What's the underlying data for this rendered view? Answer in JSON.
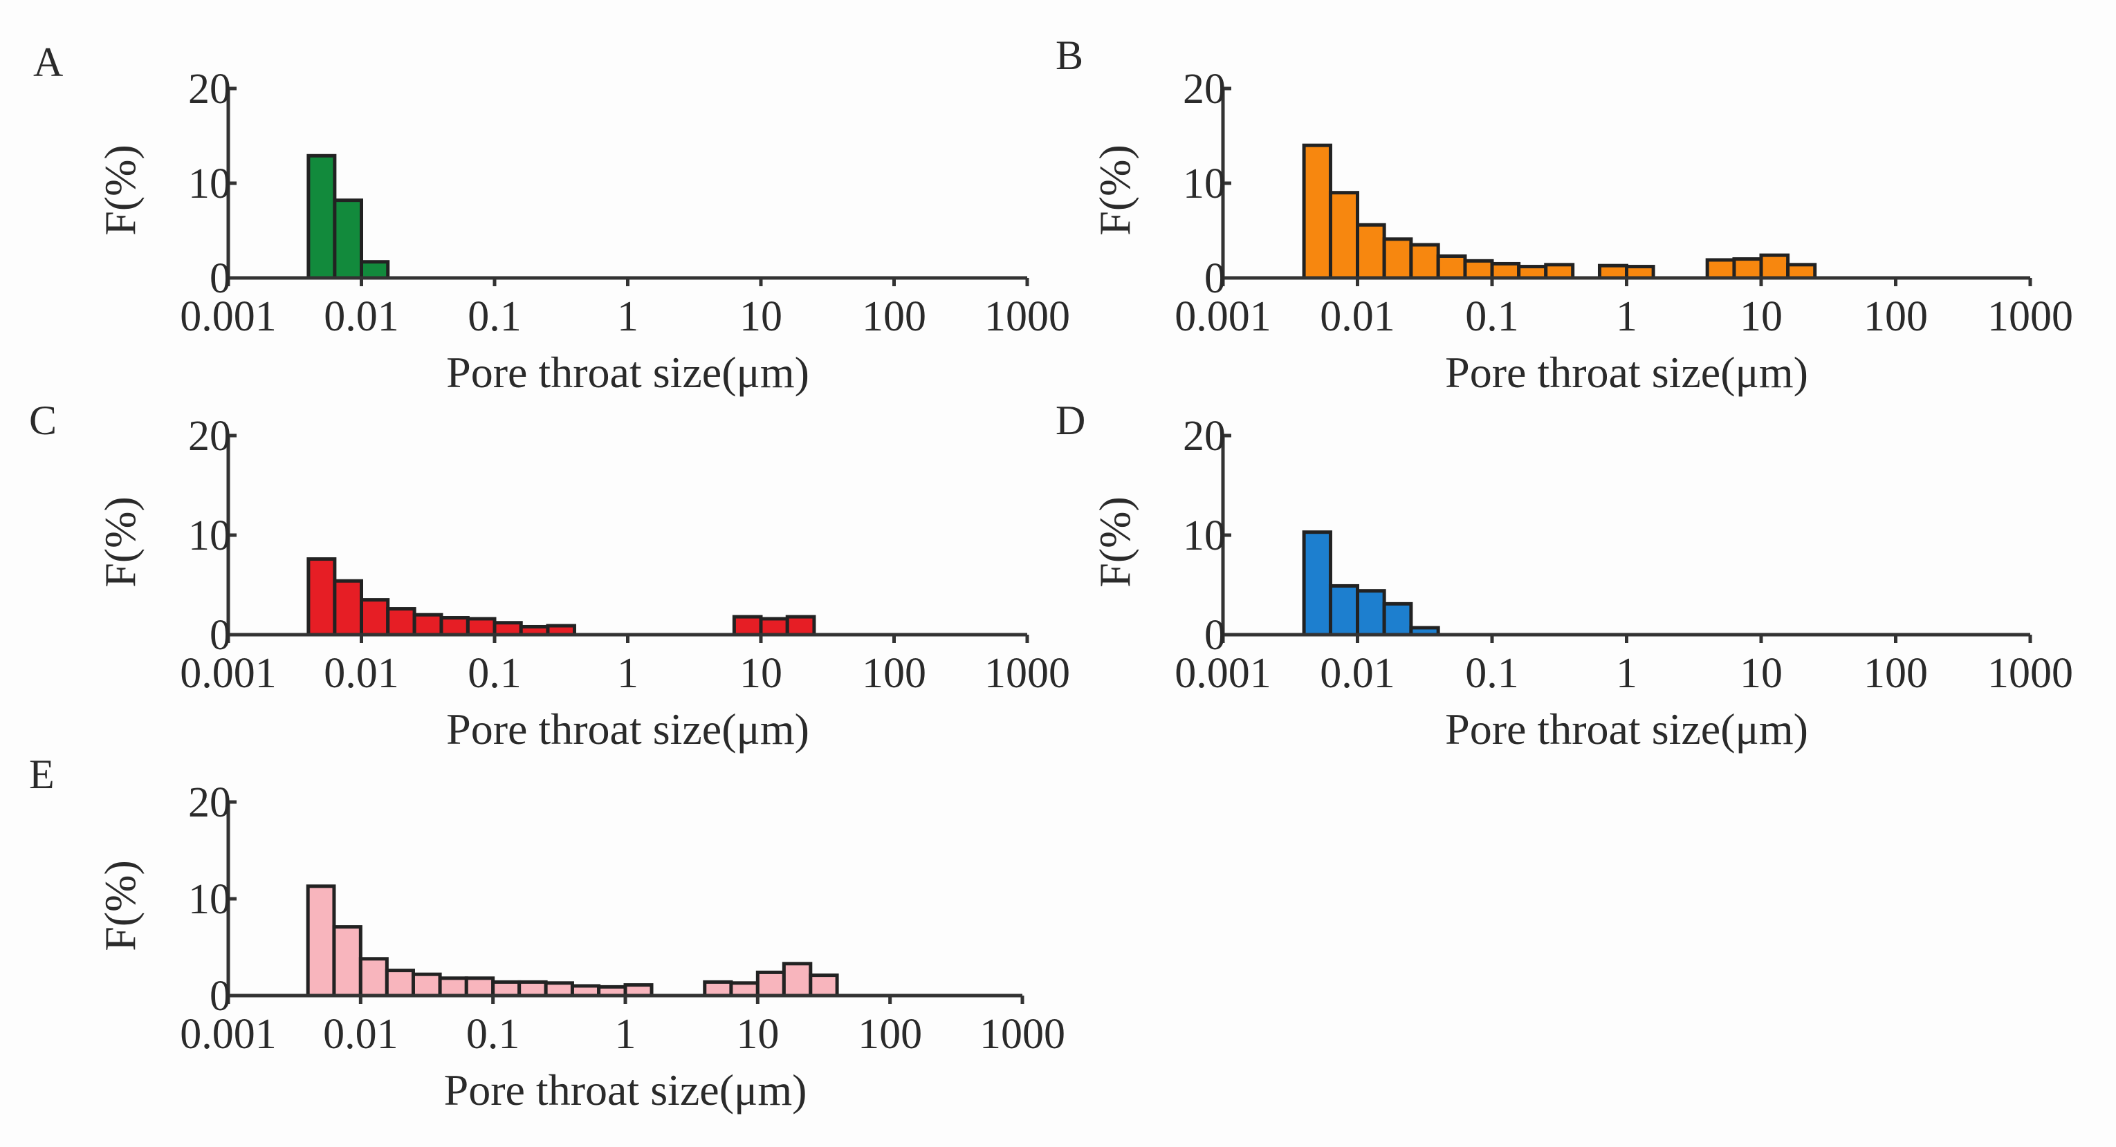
{
  "chart_data": [
    {
      "type": "bar",
      "panel": "A",
      "color": "#128a3c",
      "xscale": "log",
      "xlim": [
        0.001,
        1000
      ],
      "ylim": [
        0,
        20
      ],
      "xlabel": "Pore throat size(μm)",
      "ylabel": "F(%)",
      "xtick_labels": [
        "0.001",
        "0.01",
        "0.1",
        "1",
        "10",
        "100",
        "1000"
      ],
      "ytick_labels": [
        "0",
        "10",
        "20"
      ],
      "bin_edges": [
        0.004,
        0.0063,
        0.01,
        0.0158
      ],
      "values": [
        12.9,
        8.2,
        1.7
      ]
    },
    {
      "type": "bar",
      "panel": "B",
      "color": "#f7870f",
      "xscale": "log",
      "xlim": [
        0.001,
        1000
      ],
      "ylim": [
        0,
        20
      ],
      "xlabel": "Pore throat size(μm)",
      "ylabel": "F(%)",
      "xtick_labels": [
        "0.001",
        "0.01",
        "0.1",
        "1",
        "10",
        "100",
        "1000"
      ],
      "ytick_labels": [
        "0",
        "10",
        "20"
      ],
      "bin_edges": [
        0.004,
        0.0063,
        0.01,
        0.0158,
        0.025,
        0.0398,
        0.063,
        0.1,
        0.158,
        0.251,
        0.398,
        0.63,
        1.0,
        1.58,
        2.51,
        3.98,
        6.3,
        10,
        15.8,
        25.1
      ],
      "values": [
        14.0,
        9.0,
        5.6,
        4.1,
        3.5,
        2.3,
        1.8,
        1.5,
        1.2,
        1.4,
        0,
        1.3,
        1.2,
        0,
        0,
        1.9,
        2.0,
        2.4,
        1.4
      ]
    },
    {
      "type": "bar",
      "panel": "C",
      "color": "#e61e25",
      "xscale": "log",
      "xlim": [
        0.001,
        1000
      ],
      "ylim": [
        0,
        20
      ],
      "xlabel": "Pore throat size(μm)",
      "ylabel": "F(%)",
      "xtick_labels": [
        "0.001",
        "0.01",
        "0.1",
        "1",
        "10",
        "100",
        "1000"
      ],
      "ytick_labels": [
        "0",
        "10",
        "20"
      ],
      "bin_edges": [
        0.004,
        0.0063,
        0.01,
        0.0158,
        0.025,
        0.0398,
        0.063,
        0.1,
        0.158,
        0.251,
        0.398,
        0.63,
        1.0,
        1.58,
        2.51,
        3.98,
        6.3,
        10,
        15.8,
        25.1
      ],
      "values": [
        7.6,
        5.4,
        3.5,
        2.6,
        2.0,
        1.7,
        1.6,
        1.2,
        0.8,
        0.9,
        0,
        0,
        0,
        0,
        0,
        0,
        1.8,
        1.6,
        1.8
      ]
    },
    {
      "type": "bar",
      "panel": "D",
      "color": "#1d7fcf",
      "xscale": "log",
      "xlim": [
        0.001,
        1000
      ],
      "ylim": [
        0,
        20
      ],
      "xlabel": "Pore throat size(μm)",
      "ylabel": "F(%)",
      "xtick_labels": [
        "0.001",
        "0.01",
        "0.1",
        "1",
        "10",
        "100",
        "1000"
      ],
      "ytick_labels": [
        "0",
        "10",
        "20"
      ],
      "bin_edges": [
        0.004,
        0.0063,
        0.01,
        0.0158,
        0.025,
        0.0398
      ],
      "values": [
        10.3,
        4.9,
        4.4,
        3.1,
        0.7
      ]
    },
    {
      "type": "bar",
      "panel": "E",
      "color": "#f8b5bd",
      "xscale": "log",
      "xlim": [
        0.001,
        1000
      ],
      "ylim": [
        0,
        20
      ],
      "xlabel": "Pore throat size(μm)",
      "ylabel": "F(%)",
      "xtick_labels": [
        "0.001",
        "0.01",
        "0.1",
        "1",
        "10",
        "100",
        "1000"
      ],
      "ytick_labels": [
        "0",
        "10",
        "20"
      ],
      "bin_edges": [
        0.004,
        0.0063,
        0.01,
        0.0158,
        0.025,
        0.0398,
        0.063,
        0.1,
        0.158,
        0.251,
        0.398,
        0.63,
        1.0,
        1.58,
        2.51,
        3.98,
        6.3,
        10,
        15.8,
        25.1,
        39.8
      ],
      "values": [
        11.3,
        7.1,
        3.8,
        2.6,
        2.2,
        1.8,
        1.8,
        1.4,
        1.4,
        1.3,
        1.0,
        0.9,
        1.1,
        0,
        0,
        1.4,
        1.3,
        2.4,
        3.3,
        2.1
      ]
    }
  ]
}
